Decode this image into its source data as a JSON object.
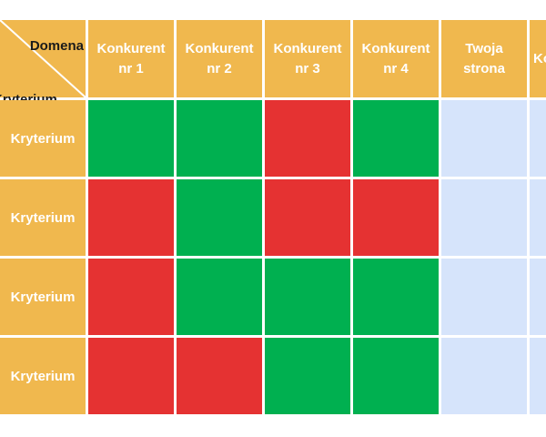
{
  "corner": {
    "column_label": "Domena",
    "row_label": "Kryterium"
  },
  "columns": [
    "Konkurent\nnr 1",
    "Konkurent\nnr 2",
    "Konkurent\nnr 3",
    "Konkurent\nnr 4",
    "Twoja\nstrona",
    "Ko"
  ],
  "rows": [
    {
      "label": "Kryterium",
      "cells": [
        "good",
        "good",
        "bad",
        "good",
        "empty",
        "empty"
      ]
    },
    {
      "label": "Kryterium",
      "cells": [
        "bad",
        "good",
        "bad",
        "bad",
        "empty",
        "empty"
      ]
    },
    {
      "label": "Kryterium",
      "cells": [
        "bad",
        "good",
        "good",
        "good",
        "empty",
        "empty"
      ]
    },
    {
      "label": "Kryterium",
      "cells": [
        "bad",
        "bad",
        "good",
        "good",
        "empty",
        "empty"
      ]
    }
  ],
  "legend_colors": {
    "good": "#00b050",
    "bad": "#e53232",
    "empty": "#d6e4fb",
    "header": "#f0b84e"
  }
}
